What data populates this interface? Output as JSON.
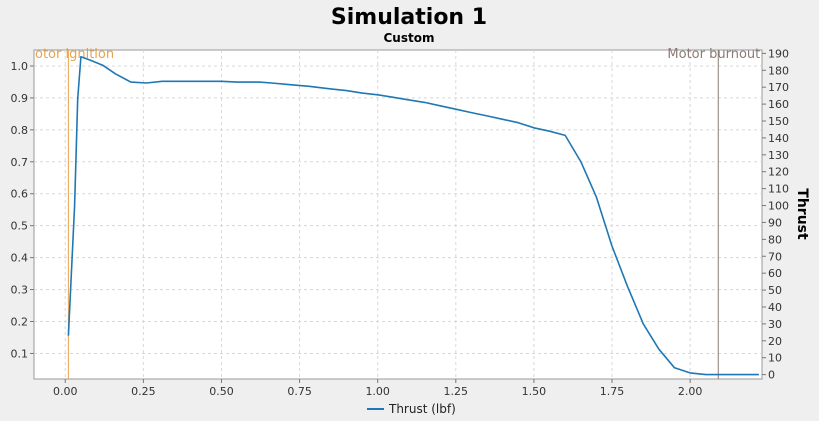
{
  "chart_data": {
    "type": "line",
    "title": "Simulation 1",
    "subtitle": "Custom",
    "xlabel": "",
    "ylabel_left": "",
    "ylabel_right": "Thrust",
    "xlim": [
      -0.1,
      2.23
    ],
    "ylim_left": [
      0.02,
      1.05
    ],
    "ylim_right": [
      -2.6,
      192
    ],
    "x_ticks": [
      "0.00",
      "0.25",
      "0.50",
      "0.75",
      "1.00",
      "1.25",
      "1.50",
      "1.75",
      "2.00"
    ],
    "x_tick_values": [
      0,
      0.25,
      0.5,
      0.75,
      1.0,
      1.25,
      1.5,
      1.75,
      2.0
    ],
    "y_left_ticks": [
      "0.1",
      "0.2",
      "0.3",
      "0.4",
      "0.5",
      "0.6",
      "0.7",
      "0.8",
      "0.9",
      "1.0"
    ],
    "y_left_tick_values": [
      0.1,
      0.2,
      0.3,
      0.4,
      0.5,
      0.6,
      0.7,
      0.8,
      0.9,
      1.0
    ],
    "y_right_ticks": [
      "0",
      "10",
      "20",
      "30",
      "40",
      "50",
      "60",
      "70",
      "80",
      "90",
      "100",
      "110",
      "120",
      "130",
      "140",
      "150",
      "160",
      "170",
      "180",
      "190"
    ],
    "y_right_tick_values": [
      0,
      10,
      20,
      30,
      40,
      50,
      60,
      70,
      80,
      90,
      100,
      110,
      120,
      130,
      140,
      150,
      160,
      170,
      180,
      190
    ],
    "grid": true,
    "legend_position": "bottom-center",
    "series": [
      {
        "name": "Thrust (lbf)",
        "axis": "right",
        "color": "#1f78b4",
        "x": [
          0.01,
          0.03,
          0.04,
          0.05,
          0.08,
          0.12,
          0.16,
          0.21,
          0.26,
          0.31,
          0.4,
          0.5,
          0.55,
          0.62,
          0.66,
          0.72,
          0.78,
          0.85,
          0.9,
          0.95,
          1.0,
          1.05,
          1.1,
          1.15,
          1.2,
          1.25,
          1.3,
          1.35,
          1.4,
          1.45,
          1.5,
          1.55,
          1.6,
          1.65,
          1.7,
          1.75,
          1.8,
          1.85,
          1.9,
          1.95,
          2.0,
          2.05,
          2.1,
          2.15,
          2.2,
          2.22
        ],
        "y": [
          23,
          100,
          163,
          188,
          186,
          183,
          178,
          173,
          172.5,
          173.5,
          173.5,
          173.5,
          173,
          173,
          172.5,
          171.5,
          170.5,
          169,
          168,
          166.5,
          165.5,
          164,
          162.5,
          161,
          159,
          157,
          155,
          153,
          151,
          149,
          146,
          144,
          141.5,
          126,
          105,
          76,
          52,
          30,
          15,
          4,
          1,
          0,
          0,
          0,
          0,
          0
        ]
      }
    ],
    "annotations": [
      {
        "label": "otor ignition",
        "x": 0.01,
        "color": "#e8a24a"
      },
      {
        "label": "Motor burnout",
        "x": 2.09,
        "color": "#8c7b75"
      }
    ],
    "legend": [
      {
        "label": "Thrust (lbf)",
        "color": "#1f78b4"
      }
    ]
  }
}
